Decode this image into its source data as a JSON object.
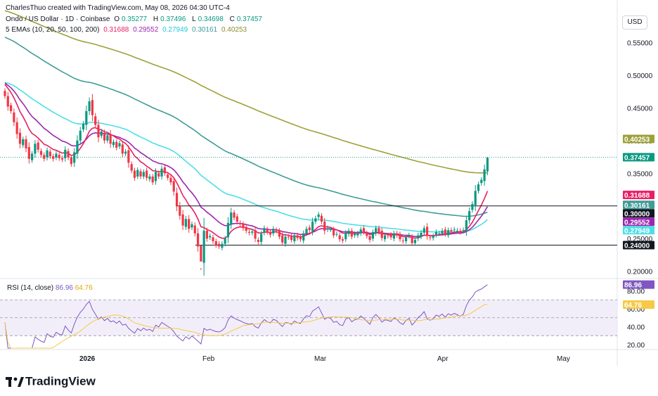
{
  "header": {
    "credit": "CharlesThuo created with TradingView.com, May 08, 2026 04:30 UTC-4",
    "symbol": "Ondo / US Dollar · 1D · Coinbase",
    "open_label": "O",
    "open": "0.35277",
    "high_label": "H",
    "high": "0.37496",
    "low_label": "L",
    "low": "0.34698",
    "close_label": "C",
    "close": "0.37457",
    "ema_label": "5 EMAs (10, 20, 50, 100, 200)",
    "ema_values": [
      "0.31688",
      "0.29552",
      "0.27949",
      "0.30161",
      "0.40253"
    ]
  },
  "currency_button": "USD",
  "brand": "TradingView",
  "colors": {
    "up": "#089981",
    "down": "#f23645",
    "ema10": "#e91e63",
    "ema20": "#9c27b0",
    "ema50": "#4ddfe6",
    "ema100": "#3f9c96",
    "ema200": "#9ea13a",
    "rsi": "#7e57c2",
    "rsi_ma": "#f7c948",
    "rsi_band": "#ede7f6"
  },
  "chart_data": [
    {
      "type": "candlestick",
      "title": "Ondo / US Dollar · 1D · Coinbase",
      "x_tick_labels": [
        "2026",
        "Feb",
        "Mar",
        "Apr",
        "May"
      ],
      "y_tick_labels": [
        "0.55000",
        "0.50000",
        "0.45000",
        "0.40000",
        "0.35000",
        "0.30000",
        "0.25000",
        "0.20000"
      ],
      "ylim": [
        0.19,
        0.615
      ],
      "horizontal_levels": [
        0.3,
        0.24
      ],
      "price_labels": [
        {
          "text": "0.40253",
          "value": 0.40253,
          "color": "#9ea13a"
        },
        {
          "text": "0.37457",
          "value": 0.37457,
          "color": "#089981"
        },
        {
          "text": "0.31688",
          "value": 0.31688,
          "color": "#e91e63"
        },
        {
          "text": "0.30161",
          "value": 0.30161,
          "color": "#3f9c96"
        },
        {
          "text": "0.30000",
          "value": 0.3,
          "color": "#131722"
        },
        {
          "text": "0.29552",
          "value": 0.29552,
          "color": "#9c27b0"
        },
        {
          "text": "0.27949",
          "value": 0.27949,
          "color": "#4ddfe6"
        },
        {
          "text": "0.24000",
          "value": 0.24,
          "color": "#131722"
        }
      ],
      "closes": [
        0.468,
        0.452,
        0.445,
        0.428,
        0.41,
        0.395,
        0.402,
        0.388,
        0.372,
        0.38,
        0.395,
        0.386,
        0.378,
        0.372,
        0.385,
        0.376,
        0.372,
        0.38,
        0.373,
        0.371,
        0.386,
        0.374,
        0.364,
        0.382,
        0.4,
        0.415,
        0.426,
        0.445,
        0.46,
        0.439,
        0.424,
        0.405,
        0.414,
        0.4,
        0.408,
        0.395,
        0.398,
        0.389,
        0.396,
        0.38,
        0.383,
        0.366,
        0.354,
        0.343,
        0.355,
        0.345,
        0.352,
        0.343,
        0.345,
        0.336,
        0.352,
        0.345,
        0.357,
        0.35,
        0.343,
        0.336,
        0.322,
        0.3,
        0.285,
        0.27,
        0.28,
        0.265,
        0.272,
        0.258,
        0.238,
        0.215,
        0.262,
        0.25,
        0.254,
        0.246,
        0.24,
        0.238,
        0.242,
        0.25,
        0.274,
        0.29,
        0.282,
        0.276,
        0.272,
        0.266,
        0.262,
        0.259,
        0.261,
        0.25,
        0.245,
        0.257,
        0.266,
        0.26,
        0.256,
        0.265,
        0.262,
        0.253,
        0.244,
        0.253,
        0.252,
        0.248,
        0.255,
        0.251,
        0.249,
        0.258,
        0.265,
        0.263,
        0.276,
        0.281,
        0.287,
        0.276,
        0.262,
        0.266,
        0.264,
        0.255,
        0.257,
        0.249,
        0.247,
        0.259,
        0.262,
        0.253,
        0.257,
        0.258,
        0.264,
        0.26,
        0.254,
        0.248,
        0.26,
        0.266,
        0.26,
        0.251,
        0.255,
        0.254,
        0.252,
        0.258,
        0.255,
        0.249,
        0.246,
        0.252,
        0.255,
        0.243,
        0.248,
        0.255,
        0.259,
        0.266,
        0.254,
        0.251,
        0.254,
        0.26,
        0.258,
        0.262,
        0.257,
        0.263,
        0.261,
        0.264,
        0.262,
        0.26,
        0.263,
        0.278,
        0.292,
        0.303,
        0.323,
        0.333,
        0.34,
        0.356,
        0.374
      ],
      "series": [
        {
          "name": "EMA 10",
          "value": 0.31688
        },
        {
          "name": "EMA 20",
          "value": 0.29552
        },
        {
          "name": "EMA 50",
          "value": 0.27949
        },
        {
          "name": "EMA 100",
          "value": 0.30161
        },
        {
          "name": "EMA 200",
          "value": 0.40253
        }
      ]
    },
    {
      "type": "line",
      "title": "RSI (14, close)",
      "label_name": "RSI (14, close)",
      "label_values": [
        "86.96",
        "64.76"
      ],
      "y_tick_labels": [
        "80.00",
        "60.00",
        "40.00",
        "20.00"
      ],
      "ylim": [
        16,
        93
      ],
      "bands": [
        70,
        50,
        30
      ],
      "series": [
        {
          "name": "RSI",
          "value": 86.96
        },
        {
          "name": "RSI MA",
          "value": 64.76
        }
      ],
      "price_labels": [
        {
          "text": "86.96",
          "value": 86.96,
          "color": "#7e57c2"
        },
        {
          "text": "64.76",
          "value": 64.76,
          "color": "#f7c948"
        }
      ]
    }
  ]
}
